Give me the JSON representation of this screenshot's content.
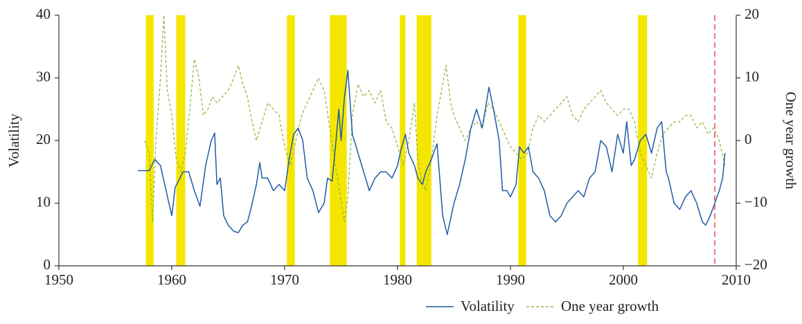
{
  "chart_data": {
    "type": "line",
    "y_label": "Volatility",
    "y2_label": "One year growth",
    "xlim": [
      1950,
      2010
    ],
    "xticks": [
      1950,
      1960,
      1970,
      1980,
      1990,
      2000,
      2010
    ],
    "ylim": [
      0,
      40
    ],
    "yticks": [
      0,
      10,
      20,
      30,
      40
    ],
    "y2lim": [
      -20,
      20
    ],
    "y2ticks": [
      {
        "value": -20,
        "label": "−20"
      },
      {
        "value": -10,
        "label": "−10"
      },
      0,
      10,
      20
    ],
    "shaded_periods": [
      [
        1957.7,
        1958.4
      ],
      [
        1960.4,
        1961.2
      ],
      [
        1970.2,
        1970.9
      ],
      [
        1974.0,
        1975.5
      ],
      [
        1980.2,
        1980.7
      ],
      [
        1981.7,
        1983.0
      ],
      [
        1990.7,
        1991.4
      ],
      [
        2001.3,
        2002.1
      ]
    ],
    "shaded_color": "#f5e600",
    "marker_x": 2008.1,
    "marker_color": "#e0474c",
    "series": [
      {
        "name": "Volatility",
        "color": "#1f5aa6",
        "dash": false,
        "x": [
          1957.0,
          1957.5,
          1958.0,
          1958.5,
          1959.0,
          1959.5,
          1960.0,
          1960.3,
          1961.0,
          1961.5,
          1962.0,
          1962.5,
          1963.0,
          1963.5,
          1963.8,
          1964.0,
          1964.3,
          1964.6,
          1965.0,
          1965.5,
          1965.9,
          1966.3,
          1966.7,
          1967.0,
          1967.5,
          1967.8,
          1968.0,
          1968.5,
          1969.0,
          1969.5,
          1970.0,
          1970.4,
          1970.8,
          1971.2,
          1971.6,
          1972.0,
          1972.5,
          1973.0,
          1973.5,
          1973.8,
          1974.2,
          1974.5,
          1974.8,
          1975.0,
          1975.3,
          1975.6,
          1976.0,
          1976.5,
          1977.0,
          1977.5,
          1978.0,
          1978.5,
          1979.0,
          1979.5,
          1980.0,
          1980.3,
          1980.7,
          1981.0,
          1981.5,
          1981.8,
          1982.2,
          1982.5,
          1983.0,
          1983.5,
          1984.0,
          1984.4,
          1985.0,
          1985.5,
          1986.0,
          1986.5,
          1987.0,
          1987.5,
          1988.1,
          1988.5,
          1989.0,
          1989.3,
          1989.7,
          1990.0,
          1990.5,
          1990.8,
          1991.2,
          1991.6,
          1992.0,
          1992.5,
          1993.0,
          1993.5,
          1994.0,
          1994.5,
          1995.0,
          1995.5,
          1996.0,
          1996.5,
          1997.0,
          1997.5,
          1998.0,
          1998.5,
          1999.0,
          1999.5,
          2000.0,
          2000.3,
          2000.7,
          2001.0,
          2001.5,
          2002.0,
          2002.5,
          2003.0,
          2003.4,
          2003.8,
          2004.0,
          2004.5,
          2005.0,
          2005.5,
          2006.0,
          2006.5,
          2007.0,
          2007.3,
          2007.7,
          2008.0,
          2008.5,
          2008.8,
          2009.0
        ],
        "values": [
          15.2,
          15.2,
          15.2,
          17,
          16,
          12,
          8,
          12.5,
          15,
          15,
          12,
          9.5,
          16,
          20,
          21.2,
          13,
          14,
          8,
          6.5,
          5.5,
          5.3,
          6.5,
          7,
          9,
          13,
          16.5,
          14,
          14,
          12,
          13,
          12,
          17,
          21,
          22,
          20,
          14,
          12,
          8.5,
          10,
          14,
          13.5,
          19,
          25,
          20,
          27,
          31.2,
          21,
          18,
          15,
          12,
          14,
          15,
          15,
          14,
          16,
          18.5,
          21,
          18,
          16,
          14,
          13,
          15,
          17,
          19.5,
          8,
          5,
          10,
          13,
          17,
          22,
          25,
          22,
          28.5,
          25,
          20,
          12,
          12,
          11,
          13,
          19,
          18,
          19,
          15,
          14,
          12,
          8,
          7,
          8,
          10,
          11,
          12,
          11,
          14,
          15,
          20,
          19,
          15,
          21,
          18,
          23,
          16,
          17,
          20,
          21,
          18,
          22,
          23,
          15,
          14,
          10,
          9,
          11,
          12,
          10,
          7,
          6.5,
          8,
          9.5,
          12,
          14,
          18
        ]
      },
      {
        "name": "One year growth",
        "color": "#8fb84a",
        "dash": true,
        "axis": "y2",
        "x": [
          1957.6,
          1958.0,
          1958.3,
          1958.6,
          1959.0,
          1959.3,
          1959.6,
          1960.0,
          1960.4,
          1960.8,
          1961.2,
          1961.6,
          1962.0,
          1962.4,
          1962.8,
          1963.2,
          1963.6,
          1964.0,
          1964.5,
          1965.0,
          1965.5,
          1965.9,
          1966.3,
          1966.7,
          1967.0,
          1967.5,
          1968.0,
          1968.5,
          1969.0,
          1969.5,
          1970.0,
          1970.5,
          1971.0,
          1971.5,
          1972.0,
          1972.5,
          1973.0,
          1973.5,
          1974.0,
          1974.5,
          1975.3,
          1975.6,
          1976.0,
          1976.5,
          1977.0,
          1977.5,
          1978.0,
          1978.5,
          1979.0,
          1979.5,
          1980.0,
          1980.5,
          1981.0,
          1981.5,
          1981.8,
          1982.1,
          1982.5,
          1983.0,
          1983.5,
          1984.0,
          1984.3,
          1984.7,
          1985.0,
          1985.5,
          1986.0,
          1986.5,
          1987.0,
          1987.5,
          1988.0,
          1988.5,
          1989.0,
          1989.5,
          1990.0,
          1990.5,
          1991.0,
          1991.5,
          1992.0,
          1992.5,
          1993.0,
          1993.5,
          1994.0,
          1994.5,
          1995.0,
          1995.5,
          1996.0,
          1996.5,
          1997.0,
          1997.5,
          1998.0,
          1998.5,
          1999.0,
          1999.5,
          2000.0,
          2000.5,
          2001.0,
          2001.5,
          2002.0,
          2002.5,
          2003.0,
          2003.5,
          2004.0,
          2004.5,
          2005.0,
          2005.5,
          2006.0,
          2006.5,
          2007.0,
          2007.5,
          2008.0,
          2008.5,
          2009.0
        ],
        "values": [
          0,
          -2,
          -13,
          0,
          10,
          20,
          8,
          4,
          -3,
          -5,
          -2,
          5,
          13,
          10,
          4,
          5,
          7,
          6,
          7,
          8,
          10,
          12,
          9,
          7,
          4,
          0,
          3,
          6,
          5,
          4,
          -1,
          -4,
          0,
          4,
          6,
          8,
          10,
          8,
          2,
          -4,
          -13,
          -9,
          4,
          9,
          7,
          8,
          6,
          8,
          3,
          2,
          -1,
          -4,
          0,
          6,
          -3,
          -6,
          -8,
          -3,
          4,
          9,
          12,
          6,
          4,
          2,
          0,
          2,
          3,
          2,
          6,
          5,
          3,
          1,
          -1,
          -2,
          -3,
          -2,
          2,
          4,
          3,
          4,
          5,
          6,
          7,
          4,
          3,
          5,
          6,
          7,
          8,
          6,
          5,
          4,
          5,
          5,
          3,
          -2,
          -4,
          -6,
          -2,
          1,
          2,
          3,
          3,
          4,
          4,
          2,
          3,
          1,
          2,
          0,
          -4
        ]
      }
    ]
  }
}
